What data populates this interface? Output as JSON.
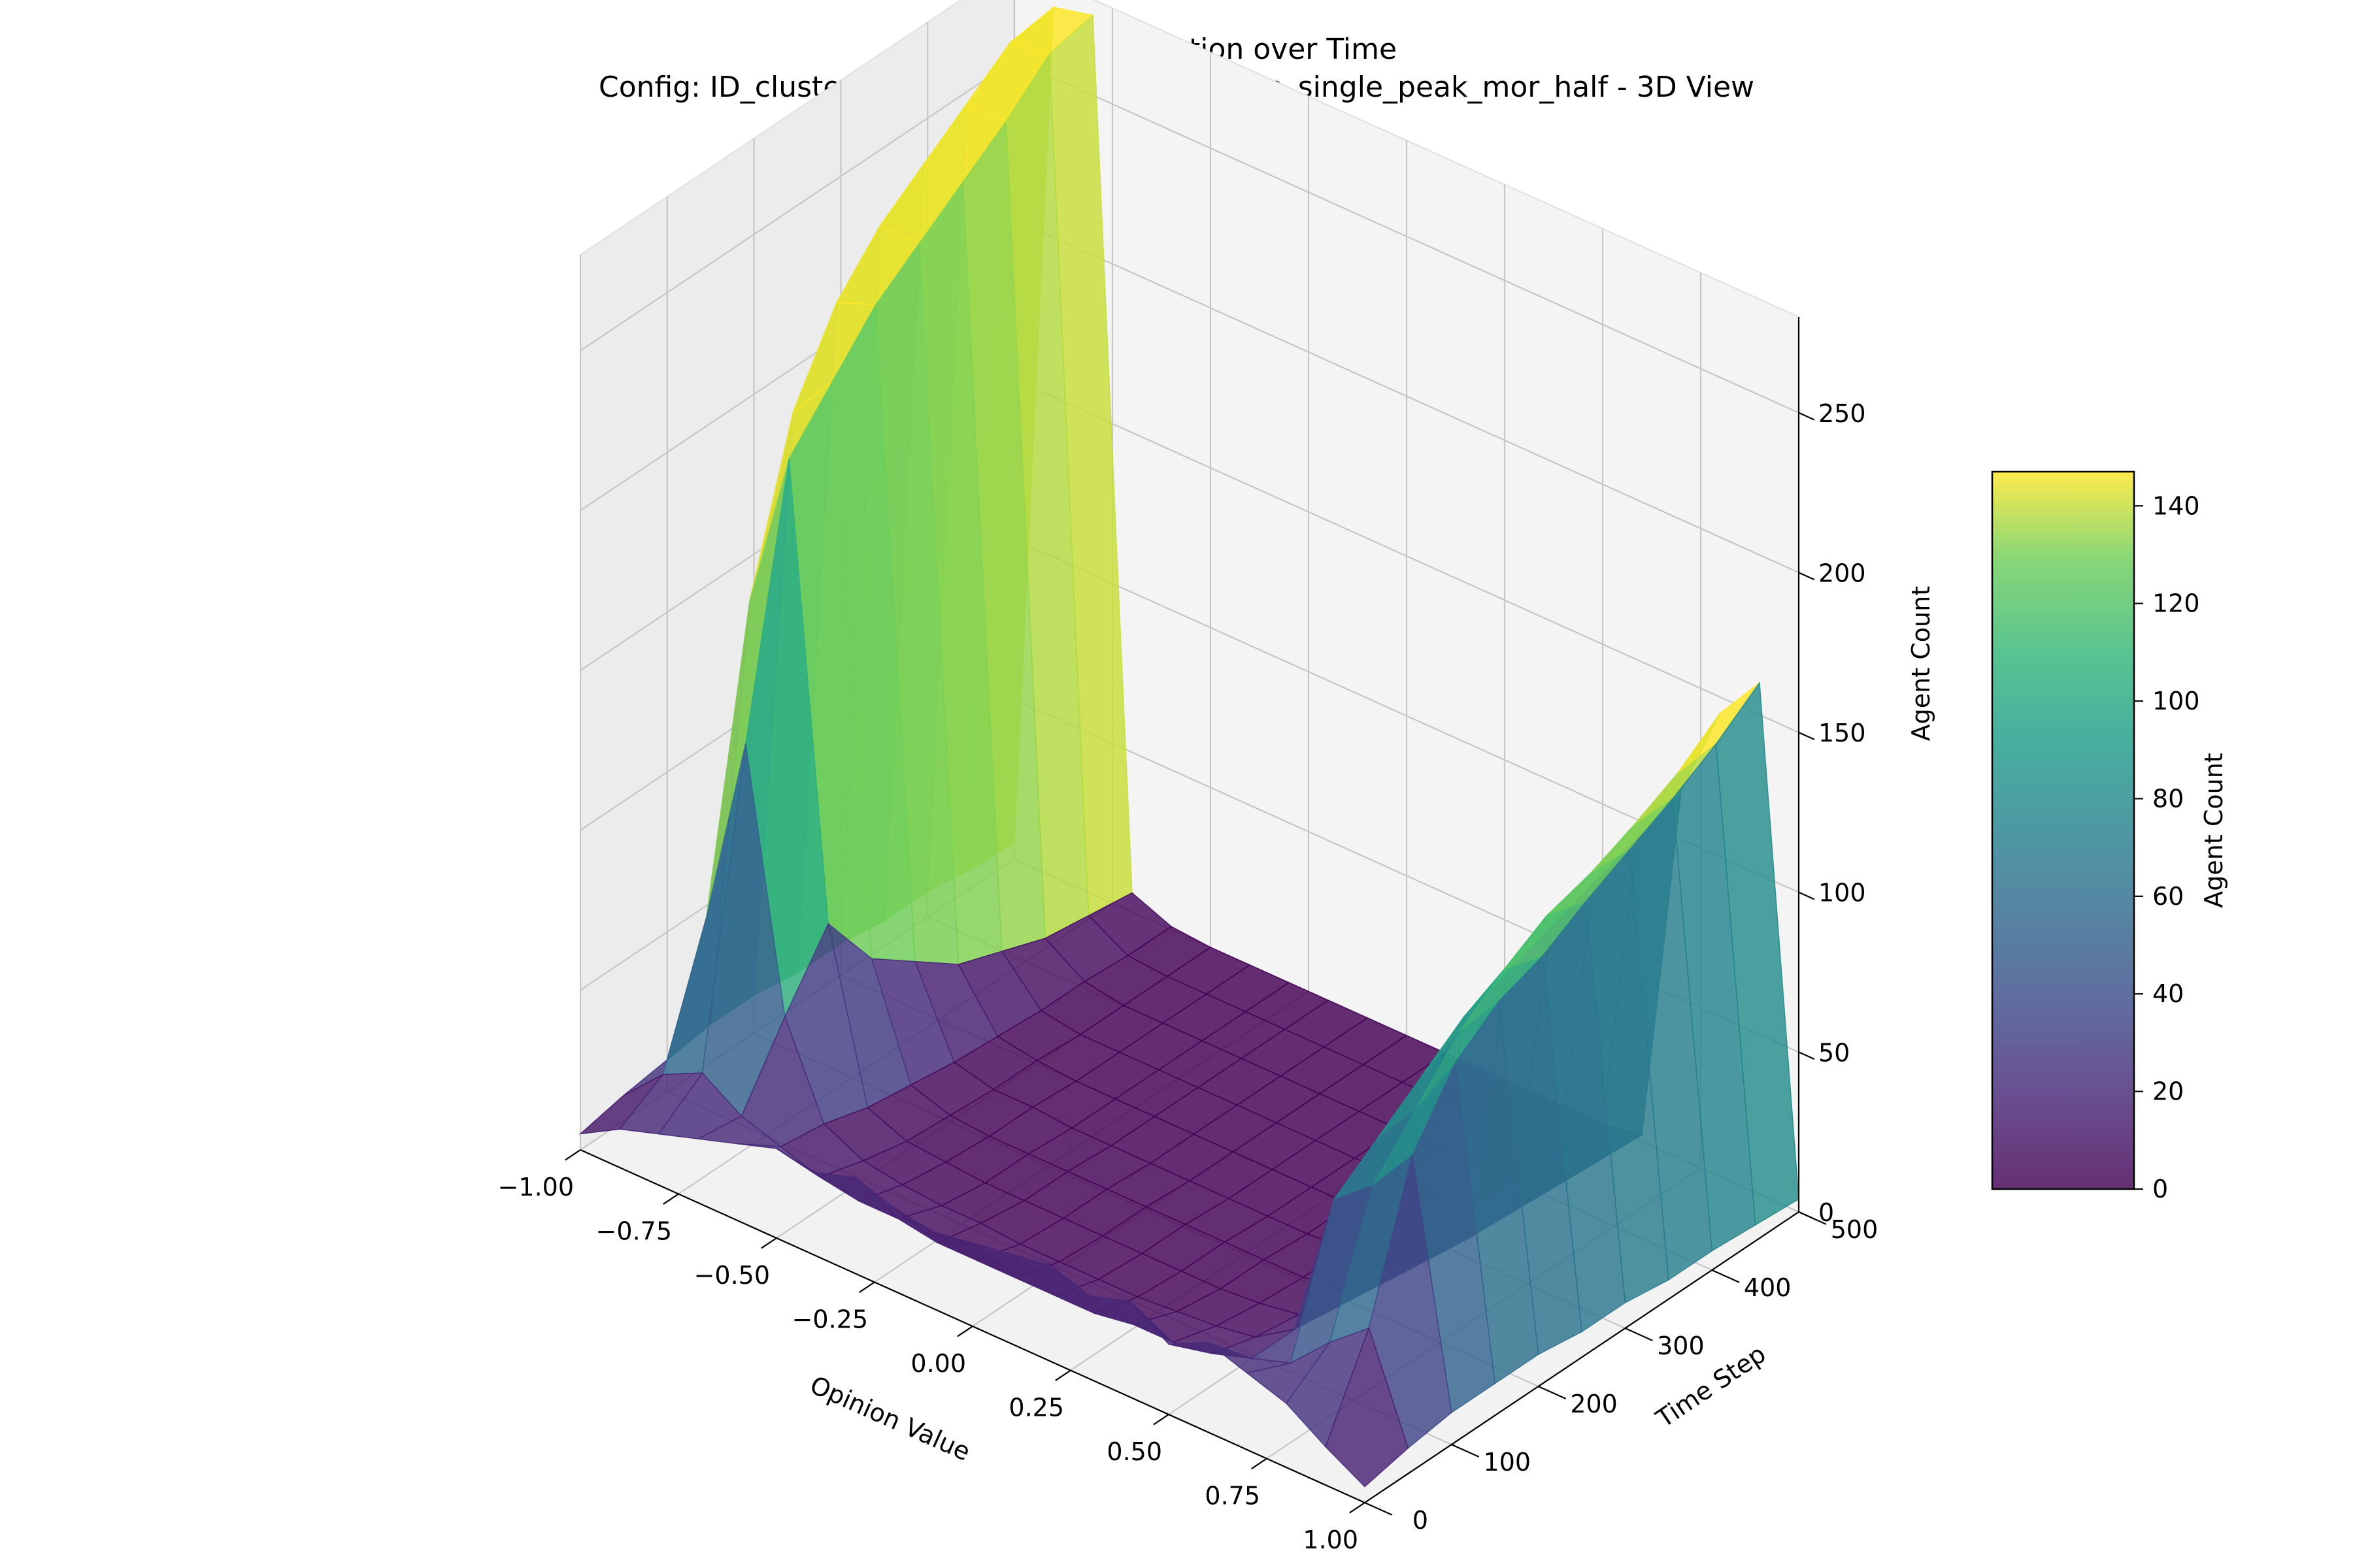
{
  "chart_data": {
    "type": "surface3d",
    "title": "Opinion Distribution over Time",
    "subtitle": "Config: ID_clustered_M_random_OP_random_op_single_peak_mor_half - 3D View",
    "xlabel": "Opinion Value",
    "ylabel": "Time Step",
    "zlabel": "Agent Count",
    "colorbar_label": "Agent Count",
    "colormap": "viridis",
    "xlim": [
      -1.0,
      1.0
    ],
    "ylim": [
      0,
      500
    ],
    "zlim": [
      0,
      280
    ],
    "color_range": [
      0,
      147
    ],
    "x_ticks": [
      "−1.00",
      "−0.75",
      "−0.50",
      "−0.25",
      "0.00",
      "0.25",
      "0.50",
      "0.75",
      "1.00"
    ],
    "y_ticks": [
      "0",
      "100",
      "200",
      "300",
      "400",
      "500"
    ],
    "z_ticks": [
      "0",
      "50",
      "100",
      "150",
      "200",
      "250"
    ],
    "colorbar_ticks": [
      "0",
      "20",
      "40",
      "60",
      "80",
      "100",
      "120",
      "140"
    ],
    "grid": true,
    "opinion_bins": [
      -1.0,
      -0.9,
      -0.8,
      -0.7,
      -0.6,
      -0.5,
      -0.4,
      -0.3,
      -0.2,
      -0.1,
      0.0,
      0.1,
      0.2,
      0.3,
      0.4,
      0.5,
      0.6,
      0.7,
      0.8,
      0.9,
      1.0
    ],
    "time_steps": [
      0,
      50,
      100,
      150,
      200,
      250,
      300,
      350,
      400,
      450,
      500
    ],
    "agent_counts": [
      [
        5,
        12,
        16,
        20,
        24,
        28,
        26,
        30,
        26,
        24,
        26,
        28,
        30,
        26,
        30,
        22,
        28,
        24,
        20,
        12,
        5
      ],
      [
        8,
        20,
        26,
        18,
        14,
        10,
        8,
        8,
        6,
        6,
        6,
        6,
        6,
        8,
        8,
        10,
        14,
        18,
        30,
        40,
        8
      ],
      [
        10,
        60,
        120,
        40,
        12,
        6,
        4,
        3,
        3,
        2,
        2,
        2,
        2,
        3,
        4,
        6,
        14,
        60,
        70,
        85,
        10
      ],
      [
        12,
        150,
        200,
        60,
        8,
        3,
        2,
        1,
        1,
        1,
        1,
        1,
        1,
        1,
        2,
        4,
        12,
        70,
        85,
        105,
        10
      ],
      [
        12,
        200,
        215,
        40,
        6,
        2,
        1,
        1,
        1,
        1,
        1,
        1,
        1,
        1,
        1,
        3,
        10,
        80,
        100,
        115,
        10
      ],
      [
        10,
        225,
        230,
        30,
        4,
        1,
        1,
        0,
        0,
        0,
        0,
        0,
        0,
        0,
        1,
        2,
        8,
        90,
        110,
        120,
        8
      ],
      [
        10,
        240,
        240,
        20,
        3,
        1,
        0,
        0,
        0,
        0,
        0,
        0,
        0,
        0,
        0,
        2,
        6,
        95,
        118,
        128,
        8
      ],
      [
        8,
        250,
        250,
        15,
        2,
        0,
        0,
        0,
        0,
        0,
        0,
        0,
        0,
        0,
        0,
        1,
        5,
        100,
        122,
        135,
        6
      ],
      [
        8,
        260,
        260,
        10,
        2,
        0,
        0,
        0,
        0,
        0,
        0,
        0,
        0,
        0,
        0,
        1,
        4,
        105,
        128,
        142,
        6
      ],
      [
        6,
        270,
        272,
        8,
        1,
        0,
        0,
        0,
        0,
        0,
        0,
        0,
        0,
        0,
        0,
        1,
        3,
        110,
        135,
        150,
        5
      ],
      [
        5,
        272,
        275,
        6,
        1,
        0,
        0,
        0,
        0,
        0,
        0,
        0,
        0,
        0,
        0,
        0,
        2,
        115,
        145,
        160,
        4
      ]
    ]
  }
}
